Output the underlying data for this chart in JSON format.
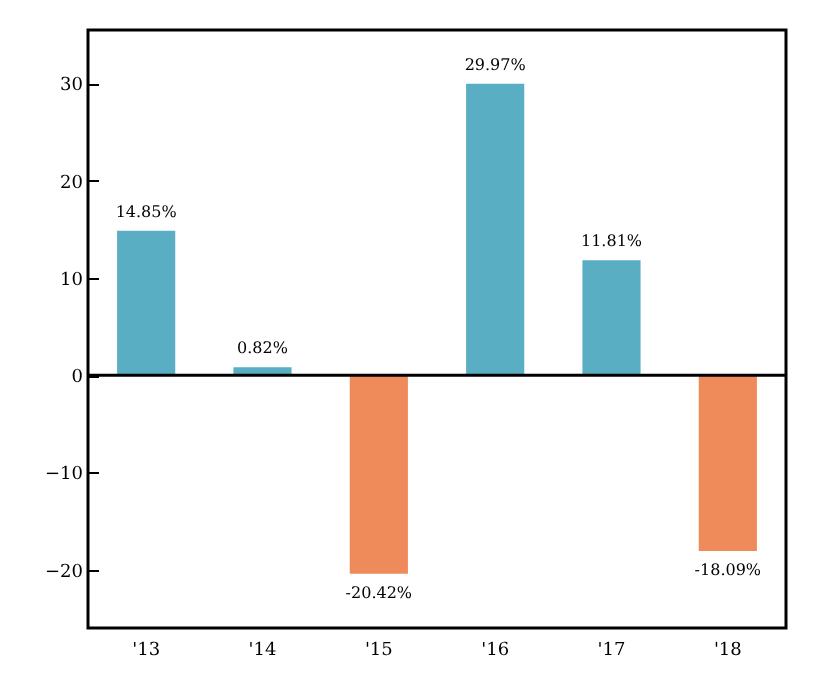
{
  "chart_data": {
    "type": "bar",
    "categories": [
      "'13",
      "'14",
      "'15",
      "'16",
      "'17",
      "'18"
    ],
    "values": [
      14.85,
      0.82,
      -20.42,
      29.97,
      11.81,
      -18.09
    ],
    "colors": [
      "#5aaec4",
      "#5aaec4",
      "#ef8a5a",
      "#5aaec4",
      "#5aaec4",
      "#ef8a5a"
    ],
    "value_labels": [
      "14.85%",
      "0.82%",
      "-20.42%",
      "29.97%",
      "11.81%",
      "-18.09%"
    ],
    "ylim": [
      -26,
      35.5
    ],
    "yticks": [
      -20,
      -10,
      0,
      10,
      20,
      30
    ],
    "ref_lines": [
      {
        "axis": "y",
        "value": 0,
        "color": "#000000"
      }
    ],
    "grid": false
  }
}
